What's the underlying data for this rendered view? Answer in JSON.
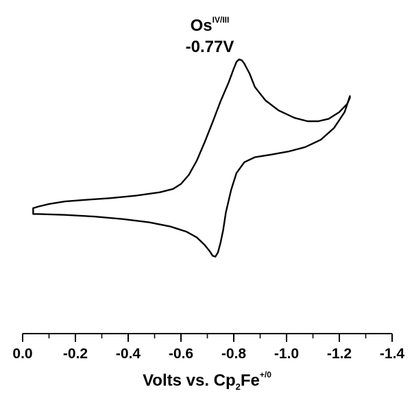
{
  "chart_data": {
    "type": "line",
    "title": {
      "species": "Os",
      "species_superscript": "IV/III",
      "potential": "-0.77V"
    },
    "xlabel": {
      "prefix": "Volts vs. Cp",
      "subscript": "2",
      "middle": "Fe",
      "superscript": "+/0"
    },
    "ylabel": "",
    "xlim": [
      0.0,
      -1.4
    ],
    "x_ticks": [
      0.0,
      -0.2,
      -0.4,
      -0.6,
      -0.8,
      -1.0,
      -1.2,
      -1.4
    ],
    "x_tick_labels": [
      "0.0",
      "-0.2",
      "-0.4",
      "-0.6",
      "-0.8",
      "-1.0",
      "-1.2",
      "-1.4"
    ],
    "y_axis_shown": false,
    "grid": false,
    "legend": "none",
    "line_color": "#000000",
    "series": [
      {
        "direction": "forward scan (upper branch)",
        "points": [
          [
            -0.04,
            -0.05
          ],
          [
            -0.06,
            -0.07
          ],
          [
            -0.1,
            -0.1
          ],
          [
            -0.16,
            -0.13
          ],
          [
            -0.24,
            -0.15
          ],
          [
            -0.33,
            -0.17
          ],
          [
            -0.43,
            -0.2
          ],
          [
            -0.52,
            -0.24
          ],
          [
            -0.57,
            -0.28
          ],
          [
            -0.6,
            -0.34
          ],
          [
            -0.63,
            -0.45
          ],
          [
            -0.66,
            -0.62
          ],
          [
            -0.69,
            -0.84
          ],
          [
            -0.72,
            -1.08
          ],
          [
            -0.75,
            -1.33
          ],
          [
            -0.78,
            -1.55
          ],
          [
            -0.8,
            -1.72
          ],
          [
            -0.81,
            -1.8
          ],
          [
            -0.82,
            -1.83
          ],
          [
            -0.83,
            -1.82
          ],
          [
            -0.84,
            -1.78
          ],
          [
            -0.86,
            -1.66
          ],
          [
            -0.88,
            -1.5
          ],
          [
            -0.92,
            -1.34
          ],
          [
            -0.97,
            -1.22
          ],
          [
            -1.03,
            -1.13
          ],
          [
            -1.08,
            -1.09
          ],
          [
            -1.12,
            -1.09
          ],
          [
            -1.16,
            -1.12
          ],
          [
            -1.2,
            -1.2
          ],
          [
            -1.23,
            -1.3
          ],
          [
            -1.24,
            -1.37
          ],
          [
            -1.24,
            -1.39
          ]
        ]
      },
      {
        "direction": "reverse scan (lower branch)",
        "points": [
          [
            -1.24,
            -1.39
          ],
          [
            -1.22,
            -1.2
          ],
          [
            -1.18,
            -1.01
          ],
          [
            -1.13,
            -0.87
          ],
          [
            -1.07,
            -0.78
          ],
          [
            -1.01,
            -0.73
          ],
          [
            -0.94,
            -0.69
          ],
          [
            -0.88,
            -0.66
          ],
          [
            -0.84,
            -0.6
          ],
          [
            -0.81,
            -0.47
          ],
          [
            -0.79,
            -0.27
          ],
          [
            -0.77,
            0.0
          ],
          [
            -0.76,
            0.21
          ],
          [
            -0.75,
            0.36
          ],
          [
            -0.74,
            0.48
          ],
          [
            -0.73,
            0.53
          ],
          [
            -0.72,
            0.52
          ],
          [
            -0.71,
            0.47
          ],
          [
            -0.69,
            0.39
          ],
          [
            -0.66,
            0.3
          ],
          [
            -0.62,
            0.23
          ],
          [
            -0.56,
            0.17
          ],
          [
            -0.48,
            0.12
          ],
          [
            -0.38,
            0.08
          ],
          [
            -0.27,
            0.05
          ],
          [
            -0.16,
            0.03
          ],
          [
            -0.06,
            0.02
          ],
          [
            -0.04,
            0.02
          ],
          [
            -0.04,
            -0.05
          ]
        ]
      }
    ]
  }
}
